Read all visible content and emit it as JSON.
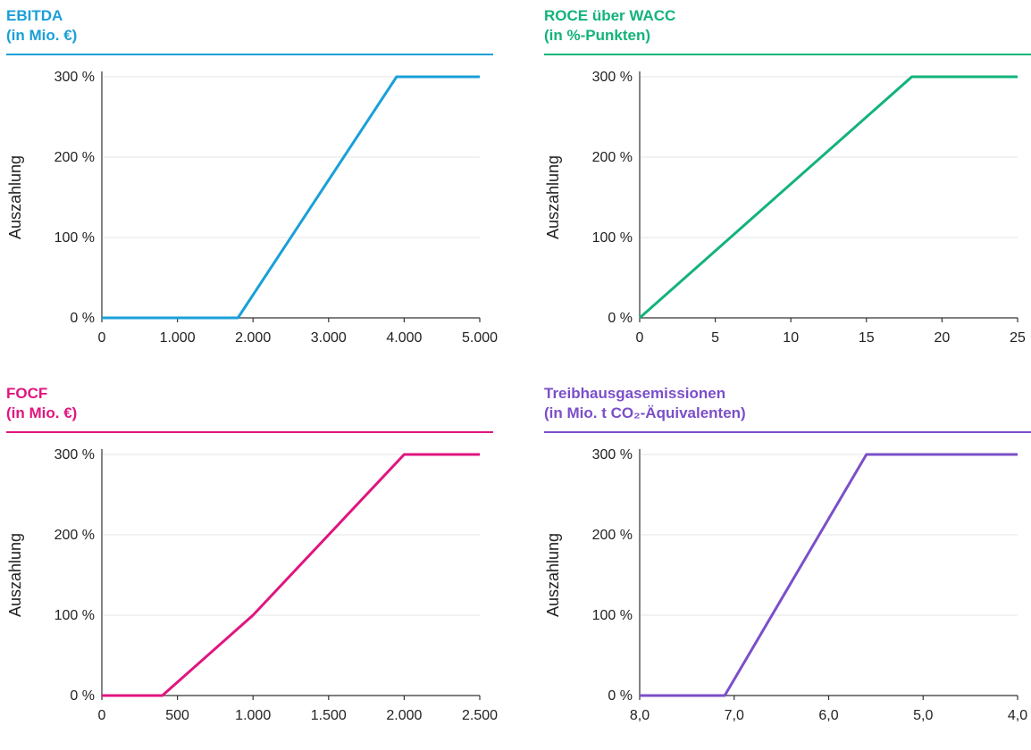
{
  "chart_data": [
    {
      "type": "line",
      "title_line1": "EBITDA",
      "title_line2": "(in Mio. €)",
      "ylabel": "Auszahlung",
      "color": "#1aa0d8",
      "xlim": [
        0,
        5000
      ],
      "ylim": [
        0,
        300
      ],
      "x_reversed": false,
      "xticks": [
        0,
        1000,
        2000,
        3000,
        4000,
        5000
      ],
      "xtick_labels": [
        "0",
        "1.000",
        "2.000",
        "3.000",
        "4.000",
        "5.000"
      ],
      "yticks": [
        0,
        100,
        200,
        300
      ],
      "ytick_labels": [
        "0 %",
        "100 %",
        "200 %",
        "300 %"
      ],
      "grid": true,
      "series": [
        {
          "x": [
            0,
            1800,
            3900,
            5000
          ],
          "y": [
            0,
            0,
            300,
            300
          ]
        }
      ]
    },
    {
      "type": "line",
      "title_line1": "ROCE über WACC",
      "title_line2": "(in %-Punkten)",
      "ylabel": "Auszahlung",
      "color": "#13b37a",
      "xlim": [
        0,
        25
      ],
      "ylim": [
        0,
        300
      ],
      "x_reversed": false,
      "xticks": [
        0,
        5,
        10,
        15,
        20,
        25
      ],
      "xtick_labels": [
        "0",
        "5",
        "10",
        "15",
        "20",
        "25"
      ],
      "yticks": [
        0,
        100,
        200,
        300
      ],
      "ytick_labels": [
        "0 %",
        "100 %",
        "200 %",
        "300 %"
      ],
      "grid": true,
      "series": [
        {
          "x": [
            0,
            18,
            25
          ],
          "y": [
            0,
            300,
            300
          ]
        }
      ]
    },
    {
      "type": "line",
      "title_line1": "FOCF",
      "title_line2": "(in Mio. €)",
      "ylabel": "Auszahlung",
      "color": "#e0157f",
      "xlim": [
        0,
        2500
      ],
      "ylim": [
        0,
        300
      ],
      "x_reversed": false,
      "xticks": [
        0,
        500,
        1000,
        1500,
        2000,
        2500
      ],
      "xtick_labels": [
        "0",
        "500",
        "1.000",
        "1.500",
        "2.000",
        "2.500"
      ],
      "yticks": [
        0,
        100,
        200,
        300
      ],
      "ytick_labels": [
        "0 %",
        "100 %",
        "200 %",
        "300 %"
      ],
      "grid": true,
      "series": [
        {
          "x": [
            0,
            400,
            1000,
            2000,
            2500
          ],
          "y": [
            0,
            0,
            100,
            300,
            300
          ]
        }
      ]
    },
    {
      "type": "line",
      "title_line1": "Treibhausgasemissionen",
      "title_line2": "(in Mio. t CO₂-Äquivalenten)",
      "ylabel": "Auszahlung",
      "color": "#7b4fc9",
      "xlim": [
        8,
        4
      ],
      "ylim": [
        0,
        300
      ],
      "x_reversed": true,
      "xticks": [
        8,
        7,
        6,
        5,
        4
      ],
      "xtick_labels": [
        "8,0",
        "7,0",
        "6,0",
        "5,0",
        "4,0"
      ],
      "yticks": [
        0,
        100,
        200,
        300
      ],
      "ytick_labels": [
        "0 %",
        "100 %",
        "200 %",
        "300 %"
      ],
      "grid": true,
      "series": [
        {
          "x": [
            8,
            7.1,
            5.6,
            4
          ],
          "y": [
            0,
            0,
            300,
            300
          ]
        }
      ]
    }
  ]
}
